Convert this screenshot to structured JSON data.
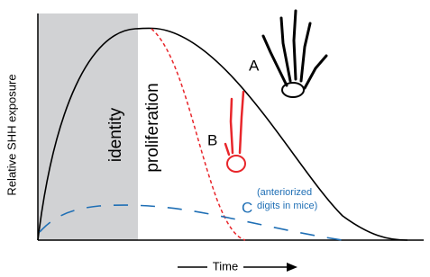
{
  "axes": {
    "y_label": "Relative SHH exposure",
    "x_label": "Time"
  },
  "regions": [
    {
      "label": "identity"
    },
    {
      "label": "proliferation"
    }
  ],
  "curves": [
    {
      "label": "A"
    },
    {
      "label": "B"
    },
    {
      "label": "C",
      "note": [
        "(anteriorized",
        "digits in mice)"
      ]
    }
  ]
}
